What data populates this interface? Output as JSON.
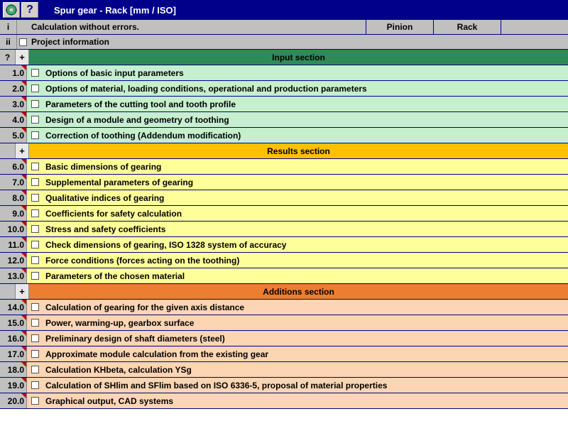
{
  "title": "Spur gear - Rack [mm / ISO]",
  "header": {
    "i_label": "i",
    "i_text": "Calculation without errors.",
    "ii_label": "ii",
    "ii_text": "Project information",
    "tab1": "Pinion",
    "tab2": "Rack"
  },
  "sections": {
    "input": {
      "q": "?",
      "plus": "+",
      "title": "Input section",
      "header_bg": "#2e8b57",
      "row_bg": "#c6efce",
      "rows": [
        {
          "num": "1.0",
          "label": "Options of basic input parameters"
        },
        {
          "num": "2.0",
          "label": "Options of material, loading conditions, operational and production parameters"
        },
        {
          "num": "3.0",
          "label": "Parameters of the cutting tool and tooth profile"
        },
        {
          "num": "4.0",
          "label": "Design of a module and geometry of toothing"
        },
        {
          "num": "5.0",
          "label": "Correction of toothing (Addendum modification)"
        }
      ]
    },
    "results": {
      "plus": "+",
      "title": "Results section",
      "header_bg": "#ffc000",
      "row_bg": "#ffff99",
      "rows": [
        {
          "num": "6.0",
          "label": "Basic dimensions of gearing"
        },
        {
          "num": "7.0",
          "label": "Supplemental parameters of gearing"
        },
        {
          "num": "8.0",
          "label": "Qualitative indices of gearing"
        },
        {
          "num": "9.0",
          "label": "Coefficients for safety calculation"
        },
        {
          "num": "10.0",
          "label": "Stress and safety coefficients"
        },
        {
          "num": "11.0",
          "label": "Check dimensions of gearing, ISO 1328 system of accuracy"
        },
        {
          "num": "12.0",
          "label": "Force conditions (forces acting on the toothing)"
        },
        {
          "num": "13.0",
          "label": "Parameters of the chosen material"
        }
      ]
    },
    "additions": {
      "plus": "+",
      "title": "Additions section",
      "header_bg": "#ed7d31",
      "row_bg": "#fcd5b4",
      "rows": [
        {
          "num": "14.0",
          "label": "Calculation of gearing for the given axis distance"
        },
        {
          "num": "15.0",
          "label": "Power, warming-up, gearbox surface"
        },
        {
          "num": "16.0",
          "label": "Preliminary design of shaft diameters (steel)"
        },
        {
          "num": "17.0",
          "label": "Approximate module calculation from the existing gear"
        },
        {
          "num": "18.0",
          "label": "Calculation KHbeta, calculation YSg"
        },
        {
          "num": "19.0",
          "label": "Calculation of SHlim and SFlim based on ISO 6336-5, proposal of material properties"
        },
        {
          "num": "20.0",
          "label": "Graphical output, CAD systems"
        }
      ]
    }
  }
}
